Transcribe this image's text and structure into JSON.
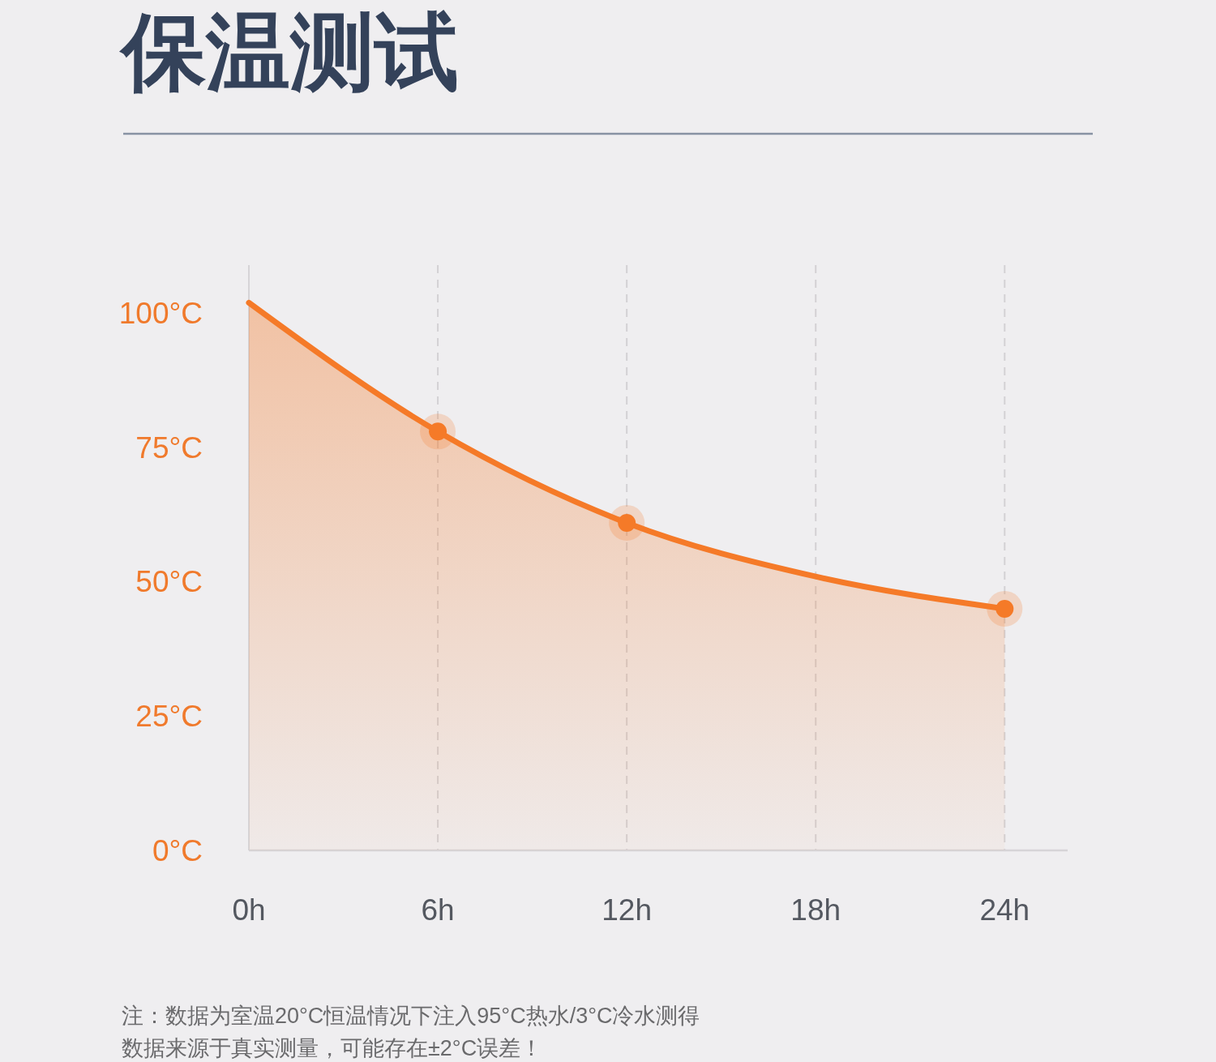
{
  "chart_data": {
    "type": "area",
    "title": "保温测试",
    "x": [
      0,
      6,
      12,
      18,
      24
    ],
    "series": [
      {
        "color": "#f57a28",
        "values": [
          102,
          78,
          61,
          51,
          45
        ]
      },
      {
        "type": "scatter",
        "color": "#f57a28",
        "marker": "circle",
        "x": [
          6,
          12,
          24
        ],
        "values": [
          78,
          61,
          45
        ]
      }
    ],
    "xlim": [
      0,
      26
    ],
    "ylim": [
      0,
      109
    ],
    "xticks": [
      {
        "value": 0,
        "label": "0h"
      },
      {
        "value": 6,
        "label": "6h"
      },
      {
        "value": 12,
        "label": "12h"
      },
      {
        "value": 18,
        "label": "18h"
      },
      {
        "value": 24,
        "label": "24h"
      }
    ],
    "yticks": [
      {
        "value": 0,
        "label": "0°C"
      },
      {
        "value": 25,
        "label": "25°C"
      },
      {
        "value": 50,
        "label": "50°C"
      },
      {
        "value": 75,
        "label": "75°C"
      },
      {
        "value": 100,
        "label": "100°C"
      }
    ],
    "grid": "x",
    "annotations": [
      "注：数据为室温20°C恒温情况下注入95°C热水/3°C冷水测得",
      "数据来源于真实测量，可能存在±2°C误差！"
    ]
  }
}
